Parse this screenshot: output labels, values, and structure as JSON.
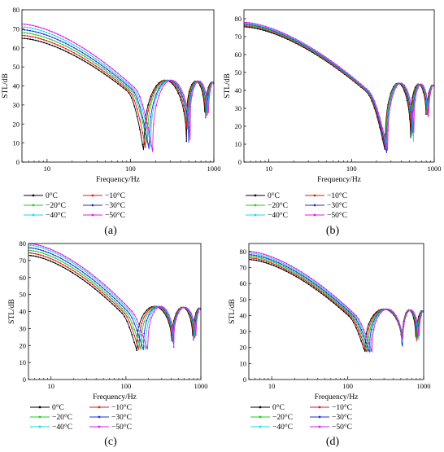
{
  "chart_data": [
    {
      "panel_label": "(a)",
      "type": "line",
      "xlabel": "Frequency/Hz",
      "ylabel": "STL/dB",
      "x_scale": "log",
      "xlim": [
        5,
        1000
      ],
      "xticks": [
        "10",
        "100",
        "1000"
      ],
      "ylim": [
        0,
        80
      ],
      "yticks": [
        "0",
        "10",
        "20",
        "30",
        "40",
        "50",
        "60",
        "70",
        "80"
      ],
      "grid": false,
      "legend_position": "below",
      "series": [
        {
          "name": "0°C",
          "color": "#000000",
          "start_db": 65.0,
          "dip_hz": 145,
          "dip_db": 5,
          "mid_peak_db": 43,
          "dip2_hz": 470,
          "dip3_hz": 780
        },
        {
          "name": "−10°C",
          "color": "#e0191b",
          "start_db": 66.5,
          "dip_hz": 152,
          "dip_db": 7,
          "mid_peak_db": 43,
          "dip2_hz": 480,
          "dip3_hz": 795
        },
        {
          "name": "−20°C",
          "color": "#22cc22",
          "start_db": 68.0,
          "dip_hz": 160,
          "dip_db": 9,
          "mid_peak_db": 43,
          "dip2_hz": 490,
          "dip3_hz": 810
        },
        {
          "name": "−30°C",
          "color": "#1f2fd8",
          "start_db": 69.5,
          "dip_hz": 168,
          "dip_db": 6,
          "mid_peak_db": 43,
          "dip2_hz": 500,
          "dip3_hz": 825
        },
        {
          "name": "−40°C",
          "color": "#19d9e6",
          "start_db": 71.0,
          "dip_hz": 176,
          "dip_db": 8,
          "mid_peak_db": 43,
          "dip2_hz": 510,
          "dip3_hz": 840
        },
        {
          "name": "−50°C",
          "color": "#e21ae6",
          "start_db": 72.5,
          "dip_hz": 185,
          "dip_db": 5,
          "mid_peak_db": 43,
          "dip2_hz": 520,
          "dip3_hz": 855
        }
      ]
    },
    {
      "panel_label": "(b)",
      "type": "line",
      "xlabel": "Frequency/Hz",
      "ylabel": "STL/dB",
      "x_scale": "log",
      "xlim": [
        5,
        1000
      ],
      "xticks": [
        "10",
        "100",
        "1000"
      ],
      "ylim": [
        0,
        85
      ],
      "yticks": [
        "0",
        "10",
        "20",
        "30",
        "40",
        "50",
        "60",
        "70",
        "80"
      ],
      "grid": false,
      "legend_position": "below",
      "series": [
        {
          "name": "0°C",
          "color": "#000000",
          "start_db": 75.5,
          "dip_hz": 255,
          "dip_db": 6,
          "mid_peak_db": 44,
          "dip2_hz": 520,
          "dip3_hz": 800
        },
        {
          "name": "−10°C",
          "color": "#e0191b",
          "start_db": 76.0,
          "dip_hz": 258,
          "dip_db": 7,
          "mid_peak_db": 44,
          "dip2_hz": 530,
          "dip3_hz": 810
        },
        {
          "name": "−20°C",
          "color": "#22cc22",
          "start_db": 76.5,
          "dip_hz": 262,
          "dip_db": 8,
          "mid_peak_db": 44,
          "dip2_hz": 540,
          "dip3_hz": 820
        },
        {
          "name": "−30°C",
          "color": "#1f2fd8",
          "start_db": 77.0,
          "dip_hz": 266,
          "dip_db": 5,
          "mid_peak_db": 44,
          "dip2_hz": 550,
          "dip3_hz": 830
        },
        {
          "name": "−40°C",
          "color": "#19d9e6",
          "start_db": 77.5,
          "dip_hz": 270,
          "dip_db": 7,
          "mid_peak_db": 44,
          "dip2_hz": 560,
          "dip3_hz": 840
        },
        {
          "name": "−50°C",
          "color": "#e21ae6",
          "start_db": 78.0,
          "dip_hz": 274,
          "dip_db": 6,
          "mid_peak_db": 44,
          "dip2_hz": 570,
          "dip3_hz": 850
        }
      ]
    },
    {
      "panel_label": "(c)",
      "type": "line",
      "xlabel": "Frequency/Hz",
      "ylabel": "STL/dB",
      "x_scale": "log",
      "xlim": [
        5,
        1000
      ],
      "xticks": [
        "10",
        "100",
        "1000"
      ],
      "ylim": [
        0,
        80
      ],
      "yticks": [
        "0",
        "10",
        "20",
        "30",
        "40",
        "50",
        "60",
        "70",
        "80"
      ],
      "grid": false,
      "legend_position": "below",
      "series": [
        {
          "name": "0°C",
          "color": "#000000",
          "start_db": 73.0,
          "dip_hz": 140,
          "dip_db": 17,
          "mid_peak_db": 43,
          "dip2_hz": 410,
          "dip3_hz": 780
        },
        {
          "name": "−10°C",
          "color": "#e0191b",
          "start_db": 74.5,
          "dip_hz": 150,
          "dip_db": 17,
          "mid_peak_db": 43,
          "dip2_hz": 415,
          "dip3_hz": 795
        },
        {
          "name": "−20°C",
          "color": "#22cc22",
          "start_db": 76.0,
          "dip_hz": 160,
          "dip_db": 17,
          "mid_peak_db": 43,
          "dip2_hz": 420,
          "dip3_hz": 810
        },
        {
          "name": "−30°C",
          "color": "#1f2fd8",
          "start_db": 77.5,
          "dip_hz": 172,
          "dip_db": 17,
          "mid_peak_db": 43,
          "dip2_hz": 425,
          "dip3_hz": 825
        },
        {
          "name": "−40°C",
          "color": "#19d9e6",
          "start_db": 79.0,
          "dip_hz": 184,
          "dip_db": 17,
          "mid_peak_db": 43,
          "dip2_hz": 430,
          "dip3_hz": 840
        },
        {
          "name": "−50°C",
          "color": "#e21ae6",
          "start_db": 80.0,
          "dip_hz": 196,
          "dip_db": 17,
          "mid_peak_db": 43,
          "dip2_hz": 435,
          "dip3_hz": 855
        }
      ]
    },
    {
      "panel_label": "(d)",
      "type": "line",
      "xlabel": "Frequency/Hz",
      "ylabel": "STL/dB",
      "x_scale": "log",
      "xlim": [
        5,
        1000
      ],
      "xticks": [
        "10",
        "100",
        "1000"
      ],
      "ylim": [
        0,
        85
      ],
      "yticks": [
        "0",
        "10",
        "20",
        "30",
        "40",
        "50",
        "60",
        "70",
        "80"
      ],
      "grid": false,
      "legend_position": "below",
      "series": [
        {
          "name": "0°C",
          "color": "#000000",
          "start_db": 75.0,
          "dip_hz": 170,
          "dip_db": 17,
          "mid_peak_db": 44,
          "dip2_hz": 520,
          "dip3_hz": 790
        },
        {
          "name": "−10°C",
          "color": "#e0191b",
          "start_db": 76.0,
          "dip_hz": 178,
          "dip_db": 17,
          "mid_peak_db": 44,
          "dip2_hz": 522,
          "dip3_hz": 805
        },
        {
          "name": "−20°C",
          "color": "#22cc22",
          "start_db": 77.0,
          "dip_hz": 186,
          "dip_db": 17,
          "mid_peak_db": 44,
          "dip2_hz": 524,
          "dip3_hz": 820
        },
        {
          "name": "−30°C",
          "color": "#1f2fd8",
          "start_db": 78.0,
          "dip_hz": 194,
          "dip_db": 17,
          "mid_peak_db": 44,
          "dip2_hz": 526,
          "dip3_hz": 835
        },
        {
          "name": "−40°C",
          "color": "#19d9e6",
          "start_db": 79.0,
          "dip_hz": 202,
          "dip_db": 17,
          "mid_peak_db": 44,
          "dip2_hz": 528,
          "dip3_hz": 850
        },
        {
          "name": "−50°C",
          "color": "#e21ae6",
          "start_db": 80.0,
          "dip_hz": 210,
          "dip_db": 17,
          "mid_peak_db": 44,
          "dip2_hz": 530,
          "dip3_hz": 865
        }
      ]
    }
  ]
}
